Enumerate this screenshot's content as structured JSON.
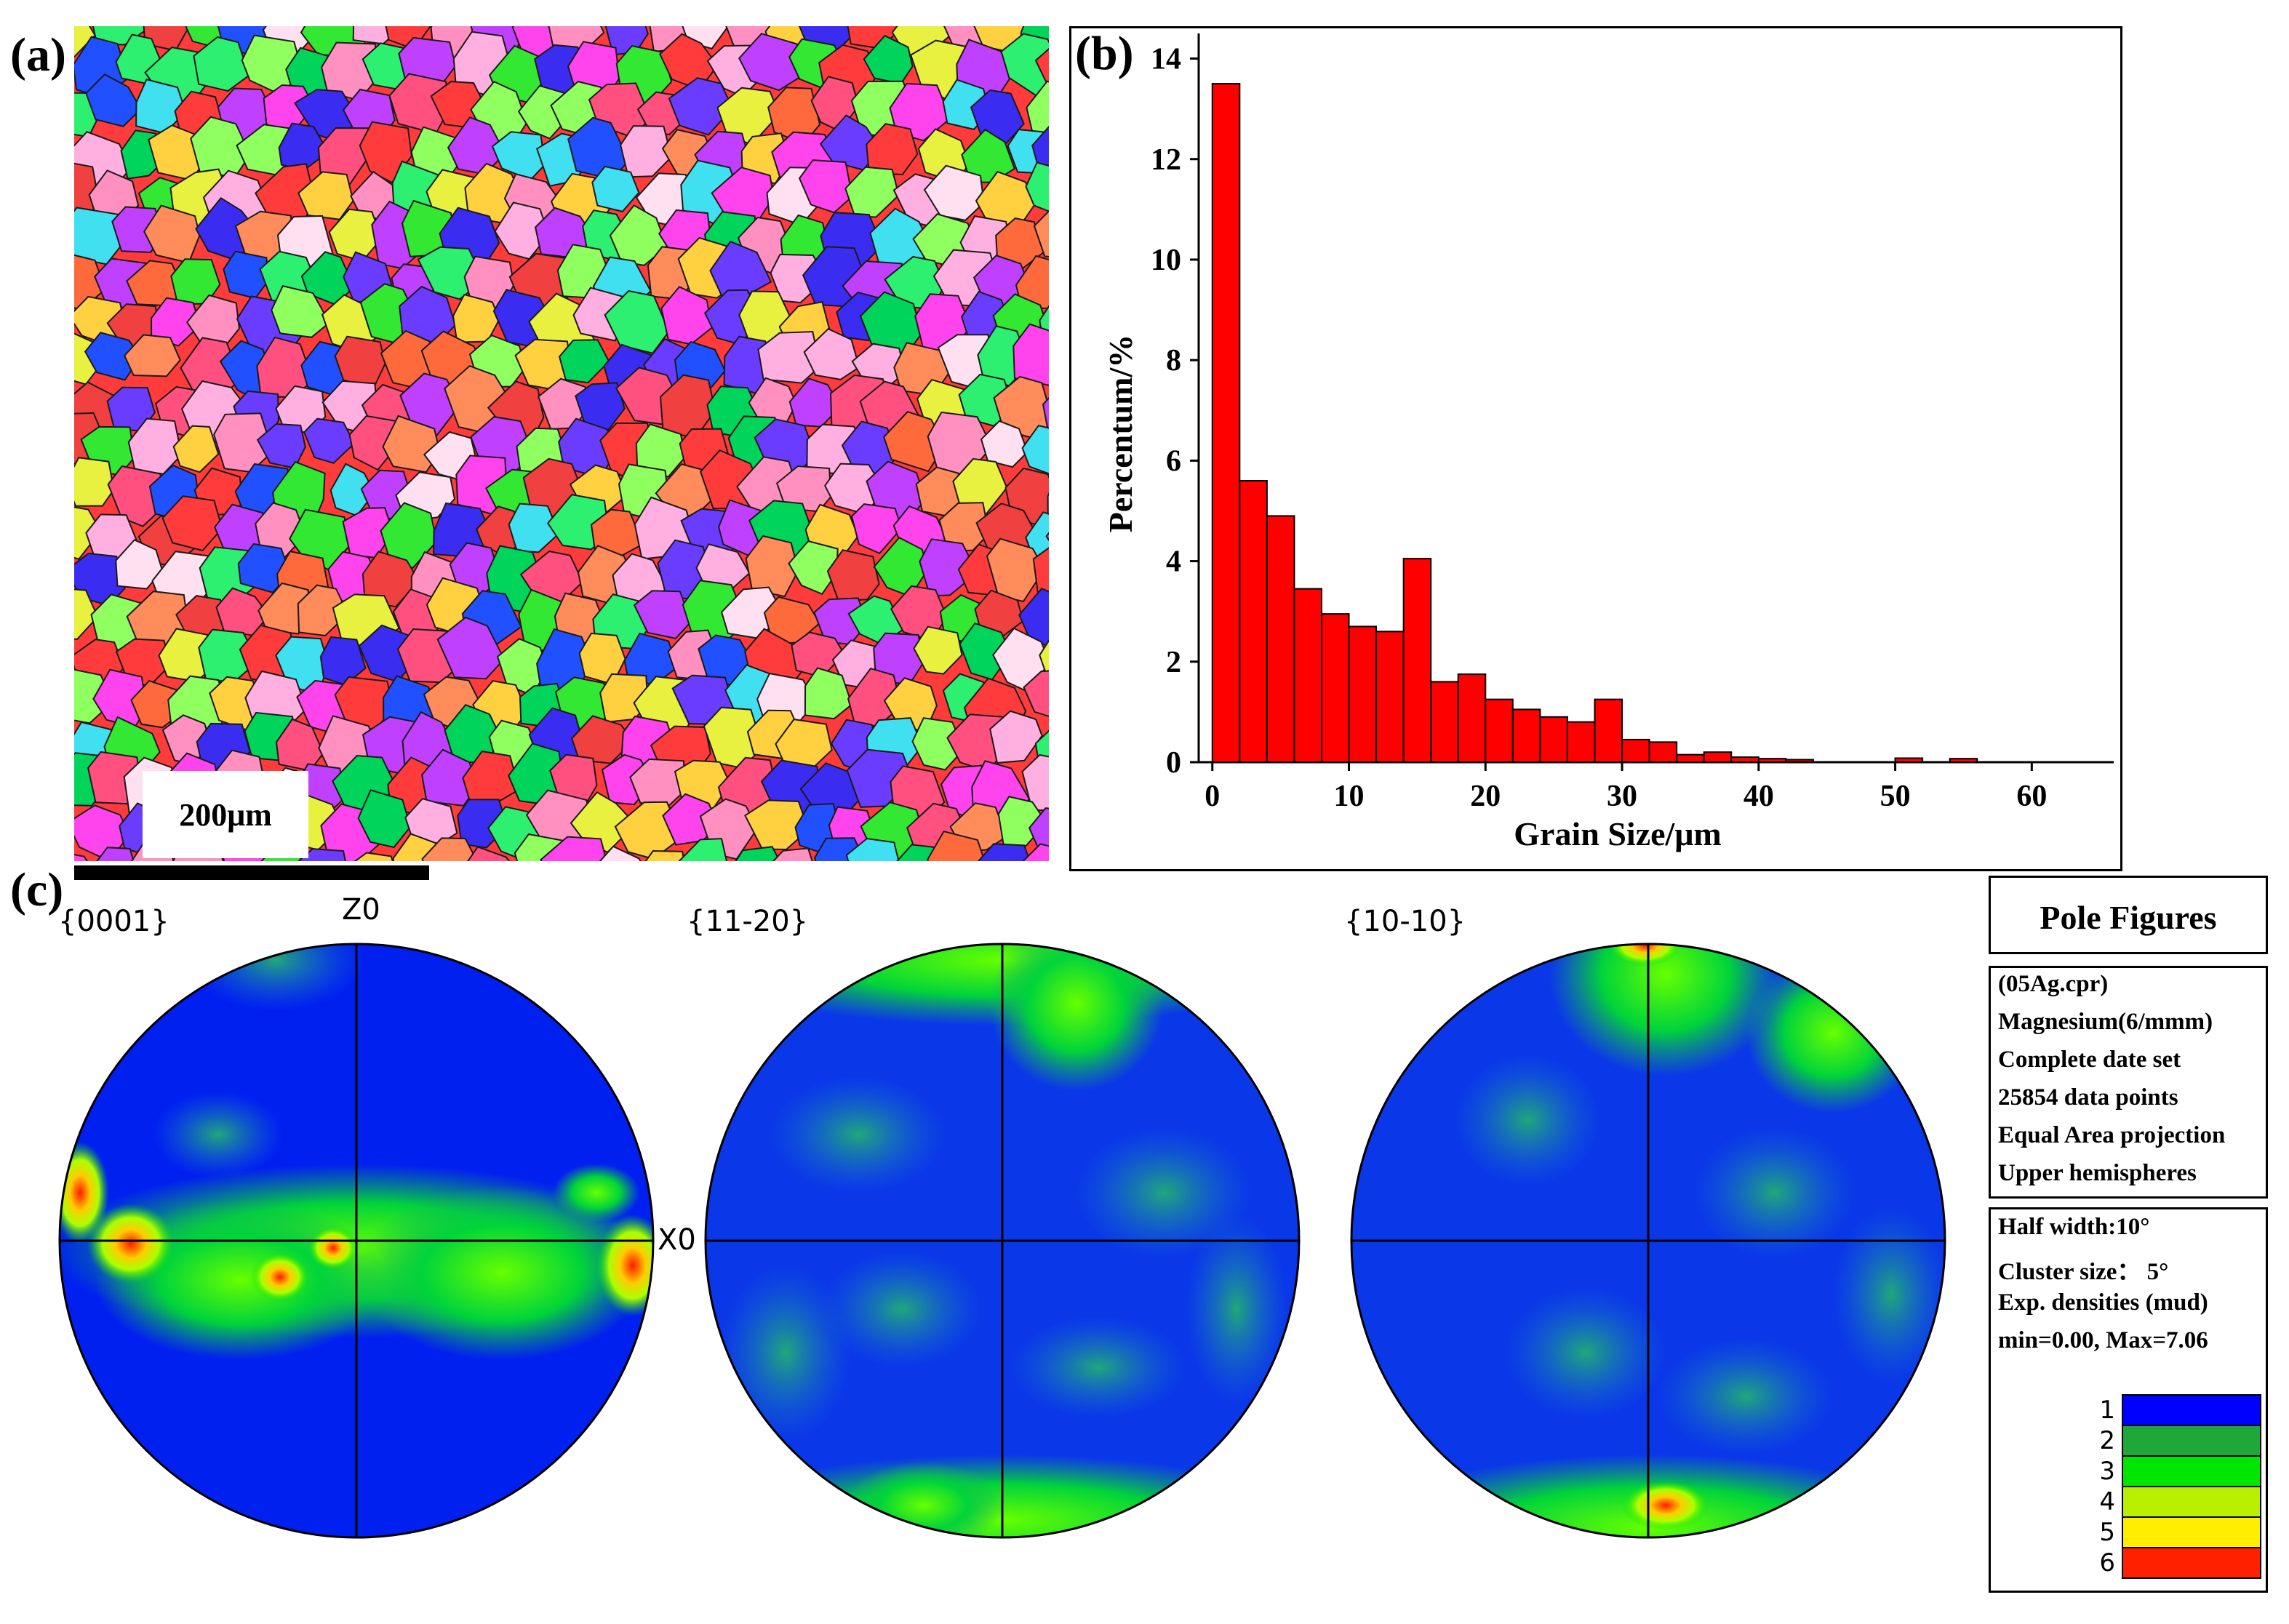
{
  "panels": {
    "a": "(a)",
    "b": "(b)",
    "c": "(c)"
  },
  "scale_bar": {
    "label": "200μm"
  },
  "chart_data": {
    "type": "bar",
    "title": "",
    "xlabel": "Grain Size/μm",
    "ylabel": "Percentum/%",
    "xlim": [
      -1,
      66
    ],
    "ylim": [
      0,
      14.5
    ],
    "xticks": [
      0,
      10,
      20,
      30,
      40,
      50,
      60
    ],
    "yticks": [
      0,
      2,
      4,
      6,
      8,
      10,
      12,
      14
    ],
    "bin_width": 2,
    "x": [
      1,
      3,
      5,
      7,
      9,
      11,
      13,
      15,
      17,
      19,
      21,
      23,
      25,
      27,
      29,
      31,
      33,
      35,
      37,
      39,
      41,
      43,
      45,
      47,
      49,
      51,
      53,
      55,
      57,
      59,
      61,
      63,
      65
    ],
    "values": [
      13.5,
      5.6,
      4.9,
      3.45,
      2.95,
      2.7,
      2.6,
      4.05,
      1.6,
      1.75,
      1.25,
      1.05,
      0.9,
      0.8,
      1.25,
      0.45,
      0.4,
      0.15,
      0.2,
      0.1,
      0.07,
      0.05,
      0.0,
      0.0,
      0.0,
      0.08,
      0.0,
      0.07,
      0.0,
      0.0,
      0.0,
      0.0,
      0.0
    ],
    "bar_color": "#ff0000"
  },
  "pole_figures": [
    {
      "label": "{0001}",
      "axis_top": "Z0",
      "axis_right": "X0"
    },
    {
      "label": "{11-20}"
    },
    {
      "label": "{10-10}"
    }
  ],
  "info": {
    "title": "Pole Figures",
    "lines1": [
      "(05Ag.cpr)",
      "Magnesium(6/mmm)",
      "Complete date set",
      "25854 data points",
      "Equal Area projection",
      "Upper hemispheres"
    ],
    "lines2": [
      "Half width:10°",
      "Cluster size： 5°",
      "Exp. densities (mud)",
      "min=0.00, Max=7.06"
    ]
  },
  "legend": {
    "levels": [
      "1",
      "2",
      "3",
      "4",
      "5",
      "6"
    ],
    "colors": [
      "#0000ff",
      "#1fa83a",
      "#00e600",
      "#b8f000",
      "#ffee00",
      "#ff2000"
    ]
  }
}
